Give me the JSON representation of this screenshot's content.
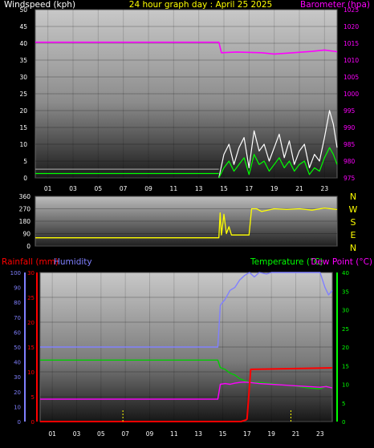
{
  "chart_data": [
    {
      "type": "line",
      "title": "24 hour graph day : April 25 2025",
      "left_axis_label": "Windspeed (kph)",
      "right_axis_label": "Barometer (hpa)",
      "left_ticks": [
        "0",
        "5",
        "10",
        "15",
        "20",
        "25",
        "30",
        "35",
        "40",
        "45",
        "50"
      ],
      "right_ticks": [
        "975",
        "980",
        "985",
        "990",
        "995",
        "1000",
        "1005",
        "1010",
        "1015",
        "1020",
        "1025"
      ],
      "x_ticks": [
        "01",
        "03",
        "05",
        "07",
        "09",
        "11",
        "13",
        "15",
        "17",
        "19",
        "21",
        "23"
      ],
      "ylim_left": [
        0,
        50
      ],
      "ylim_right": [
        975,
        1025
      ],
      "xlim": [
        0,
        24
      ],
      "colors": {
        "barometer": "#ff00ff",
        "gust": "#ffffff",
        "windspeed": "#00ff00",
        "grey_line": "#9a9a9a"
      },
      "series": [
        {
          "key": "barometer",
          "axis": "right",
          "x": [
            0,
            14.6,
            14.8,
            16,
            18,
            19,
            20.5,
            22,
            23,
            24
          ],
          "y": [
            1015.3,
            1015.3,
            1012.2,
            1012.4,
            1012.2,
            1011.8,
            1012.2,
            1012.6,
            1013,
            1012.5
          ]
        },
        {
          "key": "grey_line",
          "axis": "left",
          "x": [
            0,
            14.6
          ],
          "y": [
            2.6,
            2.6
          ]
        },
        {
          "key": "windspeed",
          "axis": "left",
          "x": [
            0,
            14.6
          ],
          "y": [
            1.3,
            1.3
          ]
        },
        {
          "key": "gust",
          "axis": "left",
          "x": [
            14.6,
            15,
            15.4,
            15.8,
            16.2,
            16.6,
            17,
            17.4,
            17.8,
            18.2,
            18.6,
            19,
            19.4,
            19.8,
            20.2,
            20.6,
            21,
            21.4,
            21.8,
            22.2,
            22.6,
            23,
            23.4,
            23.7,
            24
          ],
          "y": [
            0,
            7,
            10,
            4,
            9,
            12,
            3,
            14,
            8,
            10,
            5,
            9,
            13,
            6,
            11,
            4,
            8,
            10,
            3,
            7,
            5,
            12,
            20,
            16,
            9
          ]
        },
        {
          "key": "windspeed",
          "axis": "left",
          "x": [
            14.6,
            15,
            15.4,
            15.8,
            16.2,
            16.6,
            17,
            17.4,
            17.8,
            18.2,
            18.6,
            19,
            19.4,
            19.8,
            20.2,
            20.6,
            21,
            21.4,
            21.8,
            22.2,
            22.6,
            23,
            23.4,
            23.7,
            24
          ],
          "y": [
            0,
            3,
            5,
            2,
            4,
            6,
            1,
            7,
            4,
            5,
            2,
            4,
            6,
            3,
            5,
            2,
            4,
            5,
            1,
            3,
            2,
            6,
            9,
            7,
            4
          ]
        }
      ]
    },
    {
      "type": "line",
      "right_labels": [
        "N",
        "W",
        "S",
        "E",
        "N"
      ],
      "left_ticks": [
        "0",
        "90",
        "180",
        "270",
        "360"
      ],
      "ylim": [
        0,
        360
      ],
      "xlim": [
        0,
        24
      ],
      "colors": {
        "direction": "#ffff00"
      },
      "series": [
        {
          "key": "direction",
          "x": [
            0,
            14.6,
            14.7,
            14.8,
            15,
            15.2,
            15.4,
            15.6,
            16,
            16.6,
            17,
            17.2,
            17.6,
            18,
            19,
            20,
            21,
            22,
            23,
            24
          ],
          "y": [
            60,
            60,
            240,
            80,
            230,
            90,
            140,
            80,
            80,
            80,
            80,
            270,
            270,
            250,
            270,
            265,
            270,
            260,
            275,
            265
          ]
        }
      ]
    },
    {
      "type": "line",
      "left_labels": [
        "Rainfall (mm)",
        "Humidity"
      ],
      "right_labels": [
        "Temperature (°C)",
        "Dew Point (°C)"
      ],
      "humidity_ticks": [
        "0",
        "10",
        "20",
        "30",
        "40",
        "50",
        "60",
        "70",
        "80",
        "90",
        "100"
      ],
      "rain_ticks": [
        "0",
        "5",
        "10",
        "15",
        "20",
        "25",
        "30"
      ],
      "temp_ticks": [
        "0",
        "5",
        "10",
        "15",
        "20",
        "25",
        "30",
        "35",
        "40"
      ],
      "x_ticks": [
        "01",
        "03",
        "05",
        "07",
        "09",
        "11",
        "13",
        "15",
        "17",
        "19",
        "21",
        "23"
      ],
      "ylim_humidity": [
        0,
        100
      ],
      "ylim_rain": [
        0,
        30
      ],
      "ylim_temp": [
        0,
        40
      ],
      "xlim": [
        0,
        24
      ],
      "colors": {
        "rainfall": "#ff0000",
        "humidity": "#8080ff",
        "temperature": "#00cc00",
        "dewpoint": "#ff00ff",
        "rain_rate": "#ffff00"
      },
      "series": [
        {
          "key": "humidity",
          "axis": "humidity",
          "x": [
            0,
            14.6,
            14.8,
            15.2,
            15.6,
            16,
            16.4,
            16.8,
            17.2,
            17.6,
            18,
            18.6,
            19,
            20,
            21,
            22,
            23,
            23.4,
            23.7,
            24
          ],
          "y": [
            50,
            50,
            78,
            82,
            88,
            90,
            95,
            98,
            100,
            97,
            100,
            99,
            100,
            100,
            100,
            100,
            100,
            90,
            85,
            88
          ]
        },
        {
          "key": "temperature",
          "axis": "temp",
          "x": [
            0,
            14.6,
            14.8,
            15.2,
            15.6,
            16,
            16.4,
            16.8,
            17.2,
            18,
            19,
            20,
            21,
            22,
            23,
            23.5,
            24
          ],
          "y": [
            16.5,
            16.5,
            14.5,
            14,
            13,
            12.5,
            11.5,
            11,
            10.5,
            10.5,
            10.2,
            9.8,
            9.5,
            9,
            8.8,
            9.5,
            9
          ]
        },
        {
          "key": "dewpoint",
          "axis": "temp",
          "x": [
            0,
            14.6,
            14.8,
            15.2,
            15.6,
            16,
            16.4,
            16.8,
            17.2,
            18,
            19,
            20,
            21,
            22,
            23,
            23.5,
            24
          ],
          "y": [
            6,
            6,
            10,
            10.2,
            10,
            10.3,
            10.5,
            10.6,
            10.5,
            10.2,
            10,
            9.8,
            9.6,
            9.4,
            9.2,
            9.4,
            9
          ]
        },
        {
          "key": "rainfall",
          "axis": "rain",
          "x": [
            0,
            16.5,
            16.9,
            17,
            17.3,
            24
          ],
          "y": [
            0,
            0,
            0.3,
            0.5,
            10.5,
            10.8
          ]
        },
        {
          "key": "rain_rate",
          "axis": "rain",
          "x": [
            6.8,
            6.8,
            20.6,
            20.6
          ],
          "y": [
            0,
            2.5,
            0,
            2.5
          ]
        }
      ]
    }
  ]
}
